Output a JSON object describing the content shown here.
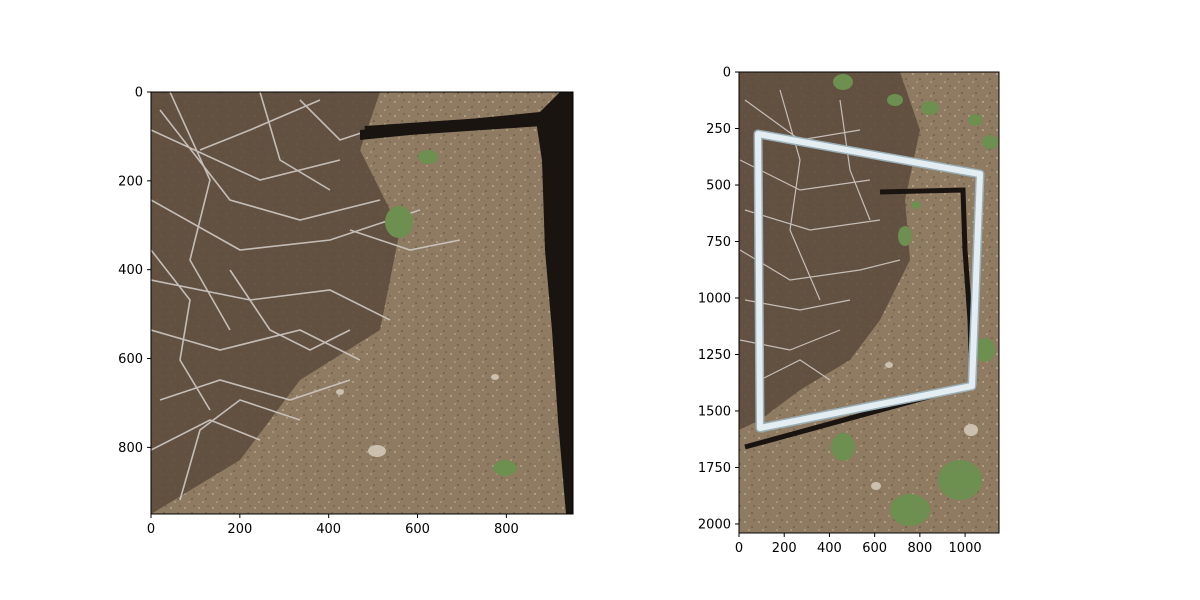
{
  "figure": {
    "panels": [
      {
        "name": "left-photo-panel",
        "x_range": [
          0,
          950
        ],
        "y_range": [
          950,
          0
        ],
        "x_ticks": [
          "0",
          "200",
          "400",
          "600",
          "800"
        ],
        "y_ticks": [
          "0",
          "200",
          "400",
          "600",
          "800"
        ],
        "image_description": "top-down photo of dry soil with a tangle of grey twigs; a dark L-shaped shadow of a frame crosses the top and right side"
      },
      {
        "name": "right-photo-panel",
        "x_range": [
          0,
          1150
        ],
        "y_range": [
          2040,
          0
        ],
        "x_ticks": [
          "0",
          "200",
          "400",
          "600",
          "800",
          "1000"
        ],
        "y_ticks": [
          "0",
          "250",
          "500",
          "750",
          "1000",
          "1250",
          "1500",
          "1750",
          "2000"
        ],
        "image_description": "photo of a white PVC square quadrat frame lying on soil with dry shrub twigs and small green plants"
      }
    ],
    "colors": {
      "soil": "#8f7a62",
      "soil_dark": "#6a5845",
      "twig": "#c9c4c0",
      "shadow": "#1a1410",
      "pvc": "#e4eef2",
      "grass": "#6d8f4f"
    }
  }
}
